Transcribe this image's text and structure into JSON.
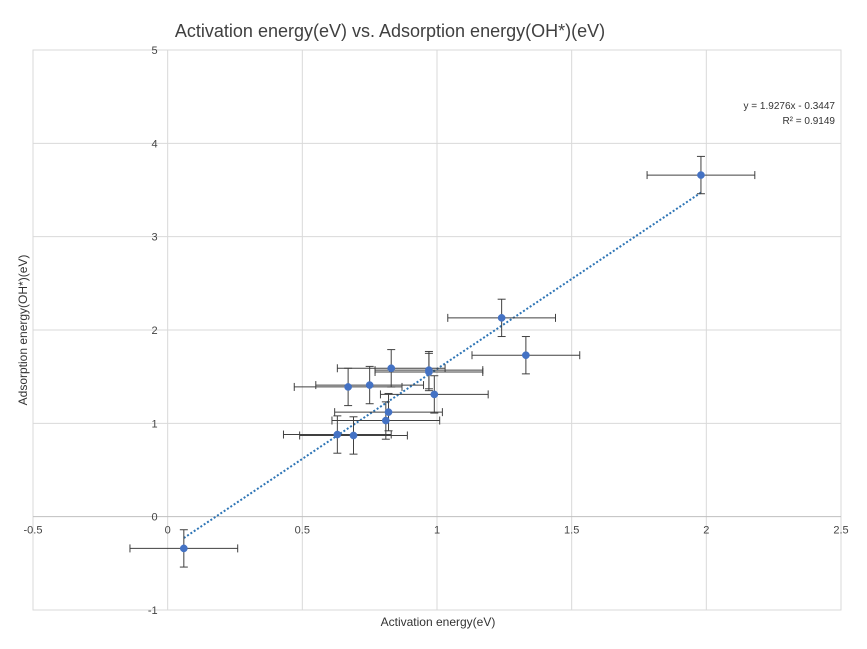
{
  "chart_data": {
    "type": "scatter",
    "title": "Activation energy(eV) vs. Adsorption energy(OH*)(eV)",
    "xlabel": "Activation energy(eV)",
    "ylabel": "Adsorption energy(OH*)(eV)",
    "xlim": [
      -0.5,
      2.5
    ],
    "ylim": [
      -1,
      5
    ],
    "x_ticks": [
      "-0.5",
      "0",
      "0.5",
      "1",
      "1.5",
      "2",
      "2.5"
    ],
    "y_ticks": [
      "-1",
      "0",
      "1",
      "2",
      "3",
      "4",
      "5"
    ],
    "grid": true,
    "marker_color": "#4472C4",
    "errorbar_color": "#404040",
    "trendline_color": "#2E75B6",
    "x_error": 0.2,
    "y_error": 0.2,
    "points": [
      {
        "x": 0.06,
        "y": -0.34
      },
      {
        "x": 0.63,
        "y": 0.88
      },
      {
        "x": 0.69,
        "y": 0.87
      },
      {
        "x": 0.67,
        "y": 1.39
      },
      {
        "x": 0.75,
        "y": 1.41
      },
      {
        "x": 0.81,
        "y": 1.03
      },
      {
        "x": 0.82,
        "y": 1.12
      },
      {
        "x": 0.83,
        "y": 1.59
      },
      {
        "x": 0.97,
        "y": 1.55
      },
      {
        "x": 0.97,
        "y": 1.57
      },
      {
        "x": 0.99,
        "y": 1.31
      },
      {
        "x": 1.24,
        "y": 2.13
      },
      {
        "x": 1.33,
        "y": 1.73
      },
      {
        "x": 1.98,
        "y": 3.66
      }
    ],
    "trendline": {
      "type": "linear",
      "slope": 1.9276,
      "intercept": -0.3447,
      "x_range": [
        0.06,
        1.98
      ],
      "equation_label": "y = 1.9276x - 0.3447",
      "r2_label": "R² = 0.9149"
    }
  }
}
